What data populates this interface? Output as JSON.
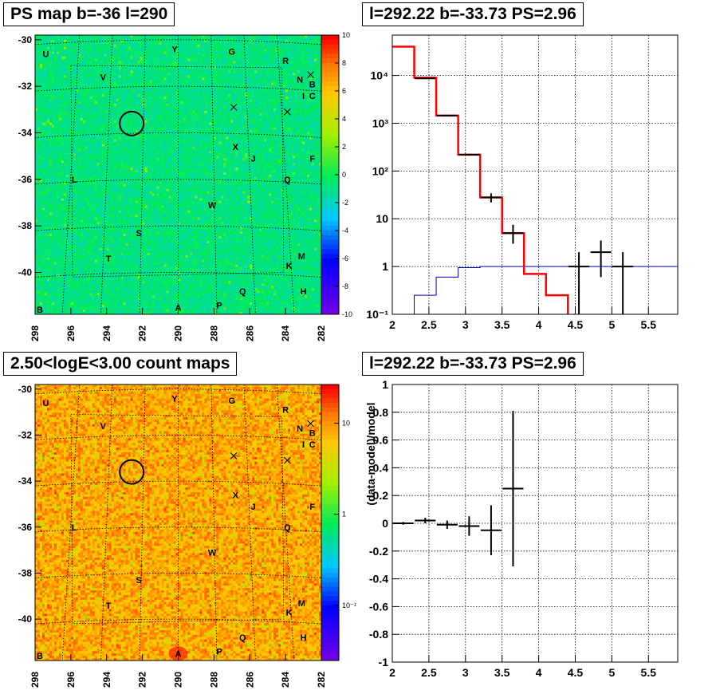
{
  "colors": {
    "map_frame": "#000000",
    "hist_model": "#ff0000",
    "hist_exposure": "#0000cc",
    "grid": "#000000"
  },
  "panels": {
    "map1": {
      "title": "PS map b=-36 l=290"
    },
    "spec": {
      "title": "l=292.22 b=-33.73 PS=2.96"
    },
    "map2": {
      "title": "2.50<logE<3.00 count maps"
    },
    "ratio": {
      "title": "l=292.22 b=-33.73 PS=2.96"
    }
  },
  "map_axes": {
    "x_ticks": [
      "298",
      "296",
      "294",
      "292",
      "290",
      "288",
      "286",
      "284",
      "282"
    ],
    "y_ticks": [
      "-30",
      "-32",
      "-34",
      "-36",
      "-38",
      "-40"
    ],
    "corner_label": "B"
  },
  "source_labels": [
    {
      "t": "U",
      "l": 297.4,
      "b": -30.6
    },
    {
      "t": "V",
      "l": 294.2,
      "b": -31.6
    },
    {
      "t": "Y",
      "l": 290.2,
      "b": -30.4
    },
    {
      "t": "G",
      "l": 287.0,
      "b": -30.5
    },
    {
      "t": "R",
      "l": 284.0,
      "b": -30.9
    },
    {
      "t": "N",
      "l": 283.2,
      "b": -31.7
    },
    {
      "t": "B",
      "l": 282.5,
      "b": -31.9
    },
    {
      "t": "I",
      "l": 283.0,
      "b": -32.4
    },
    {
      "t": "C",
      "l": 282.5,
      "b": -32.4
    },
    {
      "t": "X",
      "l": 286.8,
      "b": -34.6
    },
    {
      "t": "J",
      "l": 285.8,
      "b": -35.1
    },
    {
      "t": "F",
      "l": 282.5,
      "b": -35.1
    },
    {
      "t": "L",
      "l": 295.8,
      "b": -36.0
    },
    {
      "t": "Q",
      "l": 283.9,
      "b": -36.0
    },
    {
      "t": "W",
      "l": 288.1,
      "b": -37.1
    },
    {
      "t": "S",
      "l": 292.2,
      "b": -38.3
    },
    {
      "t": "T",
      "l": 293.9,
      "b": -39.4
    },
    {
      "t": "M",
      "l": 283.1,
      "b": -39.3
    },
    {
      "t": "K",
      "l": 283.8,
      "b": -39.7
    },
    {
      "t": "Q",
      "l": 286.4,
      "b": -40.8
    },
    {
      "t": "H",
      "l": 283.0,
      "b": -40.8
    },
    {
      "t": "P",
      "l": 287.7,
      "b": -41.4
    },
    {
      "t": "A",
      "l": 290.0,
      "b": -41.5
    }
  ],
  "cross_marks": [
    {
      "l": 286.9,
      "b": -32.9
    },
    {
      "l": 283.9,
      "b": -33.1
    },
    {
      "l": 282.6,
      "b": -31.5
    }
  ],
  "circle_marker": {
    "l": 292.6,
    "b": -33.6
  },
  "colorbar1": {
    "range": [
      -10,
      10
    ],
    "ticks": [
      "10",
      "8",
      "6",
      "4",
      "2",
      "0",
      "-2",
      "-4",
      "-6",
      "-8",
      "-10"
    ]
  },
  "colorbar2": {
    "log": true,
    "ticks": [
      "10",
      "1",
      "10⁻¹"
    ]
  },
  "chart_data": [
    {
      "type": "heatmap",
      "title": "PS map b=-36 l=290",
      "xlim": [
        298,
        282
      ],
      "ylim": [
        -41.8,
        -29.8
      ],
      "zlim": [
        -10,
        10
      ],
      "grid": true
    },
    {
      "type": "heatmap",
      "title": "2.50<logE<3.00 count maps",
      "xlim": [
        298,
        282
      ],
      "ylim": [
        -41.8,
        -29.8
      ],
      "log_color": true,
      "grid": true
    },
    {
      "type": "line",
      "title": "l=292.22 b=-33.73 PS=2.96",
      "xlim": [
        2,
        5.9
      ],
      "ylim": [
        0.1,
        70000
      ],
      "ylog": true,
      "x_ticks": [
        "2",
        "2.5",
        "3",
        "3.5",
        "4",
        "4.5",
        "5",
        "5.5"
      ],
      "y_ticks": [
        "10⁻¹",
        "1",
        "10",
        "10²",
        "10³",
        "10⁴"
      ],
      "model_edges": [
        2,
        2.3,
        2.6,
        2.9,
        3.2,
        3.5,
        3.8,
        4.1,
        4.4
      ],
      "model_values": [
        40000,
        9000,
        1450,
        220,
        28,
        5,
        0.7,
        0.25
      ],
      "exposure_edges": [
        2.3,
        2.6,
        2.9,
        3.2,
        3.5,
        3.8,
        4.1,
        4.4,
        4.7,
        5.0,
        5.3,
        5.9
      ],
      "exposure_values": [
        0.25,
        0.6,
        0.95,
        1,
        1,
        1,
        1,
        1,
        1,
        1,
        1
      ],
      "data_points": [
        {
          "x": 2.45,
          "y": 8700,
          "ylo": 8500,
          "yhi": 8900
        },
        {
          "x": 2.75,
          "y": 1450,
          "ylo": 1400,
          "yhi": 1500
        },
        {
          "x": 3.05,
          "y": 220,
          "ylo": 210,
          "yhi": 230
        },
        {
          "x": 3.35,
          "y": 28,
          "ylo": 22,
          "yhi": 34
        },
        {
          "x": 3.65,
          "y": 5,
          "ylo": 3,
          "yhi": 7.5
        },
        {
          "x": 4.55,
          "y": 1,
          "ylo": 0.1,
          "yhi": 2
        },
        {
          "x": 4.85,
          "y": 2,
          "ylo": 0.6,
          "yhi": 3.5
        },
        {
          "x": 5.15,
          "y": 1,
          "ylo": 0.1,
          "yhi": 2
        }
      ]
    },
    {
      "type": "scatter",
      "title": "l=292.22 b=-33.73 PS=2.96",
      "ylabel": "(data-model)/model",
      "xlim": [
        2,
        5.9
      ],
      "ylim": [
        -1,
        1
      ],
      "x_ticks": [
        "2",
        "2.5",
        "3",
        "3.5",
        "4",
        "4.5",
        "5",
        "5.5"
      ],
      "y_ticks": [
        "1",
        "0.8",
        "0.6",
        "0.4",
        "0.2",
        "0",
        "-0.2",
        "-0.4",
        "-0.6",
        "-0.8",
        "-1"
      ],
      "data_points": [
        {
          "x": 2.15,
          "y": 0,
          "yerr": 0.01
        },
        {
          "x": 2.45,
          "y": 0.02,
          "yerr": 0.02
        },
        {
          "x": 2.75,
          "y": -0.01,
          "yerr": 0.03
        },
        {
          "x": 3.05,
          "y": -0.02,
          "yerr": 0.07
        },
        {
          "x": 3.35,
          "y": -0.05,
          "yerr": 0.18
        },
        {
          "x": 3.65,
          "y": 0.25,
          "yerr": 0.56
        }
      ]
    }
  ]
}
